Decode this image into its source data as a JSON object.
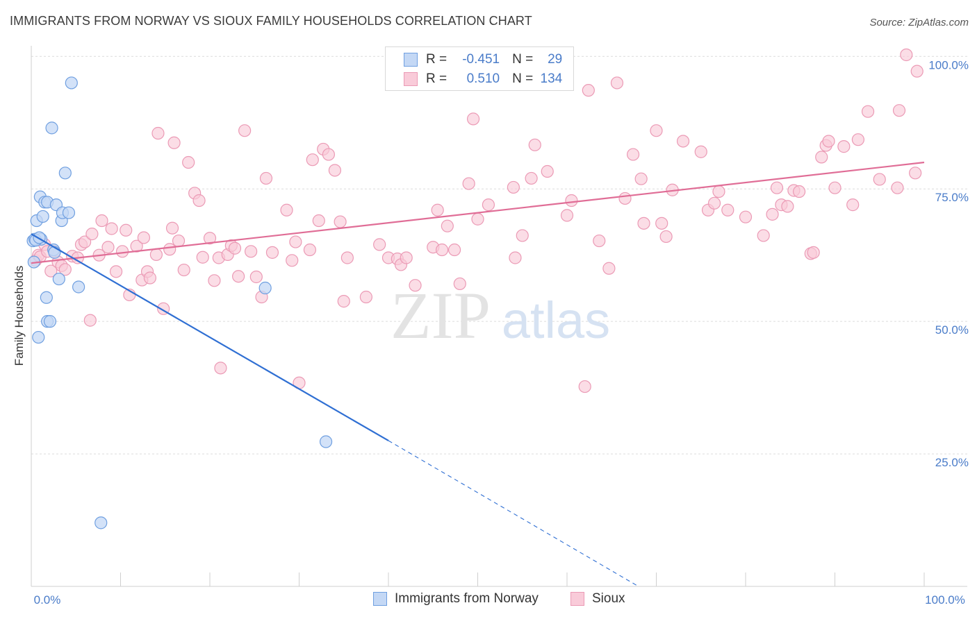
{
  "title": "IMMIGRANTS FROM NORWAY VS SIOUX FAMILY HOUSEHOLDS CORRELATION CHART",
  "source": "Source: ZipAtlas.com",
  "watermark": {
    "zip": "ZIP",
    "atlas": "atlas"
  },
  "legend": {
    "rows": [
      {
        "r_label": "R =",
        "r_value": "-0.451",
        "n_label": "N =",
        "n_value": "29"
      },
      {
        "r_label": "R =",
        "r_value": "0.510",
        "n_label": "N =",
        "n_value": "134"
      }
    ]
  },
  "colors": {
    "norway_fill": "#c4d8f5",
    "norway_stroke": "#6f9fe0",
    "norway_line": "#2f6fd3",
    "sioux_fill": "#f9cbd9",
    "sioux_stroke": "#eb9ab5",
    "sioux_line": "#e06d96",
    "tick_text": "#4a7cc9",
    "grid": "#dcdcdc"
  },
  "chart_data": {
    "type": "scatter",
    "title": "IMMIGRANTS FROM NORWAY VS SIOUX FAMILY HOUSEHOLDS CORRELATION CHART",
    "xlabel": "",
    "ylabel": "Family Households",
    "xlim": [
      0,
      100
    ],
    "ylim": [
      0,
      102
    ],
    "x_tick_labels": [
      "0.0%",
      "100.0%"
    ],
    "y_ticks": [
      25,
      50,
      75,
      100
    ],
    "y_tick_labels": [
      "25.0%",
      "50.0%",
      "75.0%",
      "100.0%"
    ],
    "grid": true,
    "series": [
      {
        "name": "Immigrants from Norway",
        "r": -0.451,
        "n": 29,
        "trend": {
          "x0": 0,
          "y0": 66.5,
          "x1": 40,
          "y1": 27.5,
          "dash_to_x": 68,
          "dash_to_y": 0
        },
        "points": [
          [
            0.2,
            65.2
          ],
          [
            0.3,
            61.2
          ],
          [
            0.4,
            65.5
          ],
          [
            0.6,
            69
          ],
          [
            0.8,
            47
          ],
          [
            1.0,
            73.5
          ],
          [
            1.1,
            65.5
          ],
          [
            1.3,
            69.8
          ],
          [
            1.5,
            72.5
          ],
          [
            1.7,
            54.5
          ],
          [
            1.8,
            72.5
          ],
          [
            1.8,
            50
          ],
          [
            2.1,
            50
          ],
          [
            2.3,
            86.5
          ],
          [
            2.5,
            63.5
          ],
          [
            2.6,
            63
          ],
          [
            2.8,
            72
          ],
          [
            3.1,
            58
          ],
          [
            3.4,
            69
          ],
          [
            3.5,
            70.5
          ],
          [
            3.8,
            78
          ],
          [
            4.2,
            70.5
          ],
          [
            4.5,
            95
          ],
          [
            5.3,
            56.5
          ],
          [
            7.8,
            12
          ],
          [
            26.2,
            56.3
          ],
          [
            33.0,
            27.3
          ],
          [
            0.5,
            65.3
          ],
          [
            0.9,
            65.8
          ]
        ]
      },
      {
        "name": "Sioux",
        "r": 0.51,
        "n": 134,
        "trend": {
          "x0": 0,
          "y0": 61,
          "x1": 100,
          "y1": 80
        },
        "points": [
          [
            0.5,
            61.5
          ],
          [
            0.8,
            62.5
          ],
          [
            1.0,
            62.2
          ],
          [
            1.5,
            64.5
          ],
          [
            1.8,
            63.2
          ],
          [
            2.2,
            59.5
          ],
          [
            2.6,
            63.2
          ],
          [
            3.0,
            61.2
          ],
          [
            3.4,
            60.5
          ],
          [
            3.8,
            59.8
          ],
          [
            4.6,
            62.3
          ],
          [
            5.2,
            62
          ],
          [
            5.6,
            64.5
          ],
          [
            6.0,
            65
          ],
          [
            6.6,
            50.2
          ],
          [
            6.8,
            66.5
          ],
          [
            7.6,
            62.5
          ],
          [
            7.9,
            69
          ],
          [
            8.6,
            64
          ],
          [
            9.0,
            67.5
          ],
          [
            9.5,
            59.4
          ],
          [
            10.2,
            63.2
          ],
          [
            10.6,
            67.2
          ],
          [
            11.0,
            55
          ],
          [
            11.8,
            64.2
          ],
          [
            12.4,
            57.8
          ],
          [
            12.6,
            65.8
          ],
          [
            13.0,
            59.4
          ],
          [
            13.3,
            58.2
          ],
          [
            14.0,
            62.6
          ],
          [
            14.2,
            85.5
          ],
          [
            14.8,
            52.4
          ],
          [
            15.5,
            63.6
          ],
          [
            15.8,
            67.6
          ],
          [
            16.0,
            83.7
          ],
          [
            16.5,
            65.2
          ],
          [
            17.1,
            59.7
          ],
          [
            17.6,
            80
          ],
          [
            18.3,
            74.2
          ],
          [
            18.8,
            72.8
          ],
          [
            19.2,
            62.1
          ],
          [
            20.0,
            65.7
          ],
          [
            20.5,
            57.7
          ],
          [
            21.0,
            62
          ],
          [
            21.2,
            41.2
          ],
          [
            22.0,
            62.6
          ],
          [
            22.4,
            64.3
          ],
          [
            22.8,
            63.8
          ],
          [
            23.2,
            58.5
          ],
          [
            23.9,
            86
          ],
          [
            24.6,
            63.2
          ],
          [
            25.2,
            58.4
          ],
          [
            25.8,
            54.6
          ],
          [
            26.3,
            77
          ],
          [
            27.0,
            63
          ],
          [
            28.6,
            71
          ],
          [
            29.2,
            61.5
          ],
          [
            29.6,
            65
          ],
          [
            30.0,
            38.4
          ],
          [
            31.2,
            63.5
          ],
          [
            31.5,
            80.5
          ],
          [
            32.2,
            69
          ],
          [
            32.7,
            82.5
          ],
          [
            33.3,
            81.5
          ],
          [
            34.0,
            78.5
          ],
          [
            34.6,
            68.8
          ],
          [
            35.0,
            53.8
          ],
          [
            35.4,
            62
          ],
          [
            37.5,
            54.6
          ],
          [
            39.0,
            64.5
          ],
          [
            40.0,
            62
          ],
          [
            41.0,
            61.8
          ],
          [
            41.4,
            60.7
          ],
          [
            42.0,
            62
          ],
          [
            43.0,
            56.8
          ],
          [
            45.0,
            64
          ],
          [
            45.5,
            71
          ],
          [
            46.0,
            63.5
          ],
          [
            46.6,
            68
          ],
          [
            47.4,
            63.5
          ],
          [
            48.0,
            57.1
          ],
          [
            49.0,
            76
          ],
          [
            49.5,
            88.2
          ],
          [
            50.0,
            69.3
          ],
          [
            51.2,
            72
          ],
          [
            54.0,
            75.3
          ],
          [
            54.2,
            62
          ],
          [
            55.0,
            66.2
          ],
          [
            56.0,
            77
          ],
          [
            56.4,
            83.3
          ],
          [
            57.8,
            78.3
          ],
          [
            60.0,
            70
          ],
          [
            60.5,
            72.8
          ],
          [
            62.0,
            37.7
          ],
          [
            62.4,
            93.6
          ],
          [
            63.6,
            65.2
          ],
          [
            64.7,
            60
          ],
          [
            65.6,
            95
          ],
          [
            66.5,
            73.2
          ],
          [
            67.4,
            81.5
          ],
          [
            68.3,
            76.9
          ],
          [
            68.6,
            68.5
          ],
          [
            70.0,
            86
          ],
          [
            70.6,
            68.5
          ],
          [
            71.1,
            66
          ],
          [
            71.8,
            74.8
          ],
          [
            73.0,
            84
          ],
          [
            75.0,
            82
          ],
          [
            75.8,
            71
          ],
          [
            76.5,
            72.3
          ],
          [
            77.0,
            74.5
          ],
          [
            78.0,
            71
          ],
          [
            80.0,
            69.7
          ],
          [
            82.0,
            66.2
          ],
          [
            83.0,
            70.2
          ],
          [
            83.5,
            75.2
          ],
          [
            84.0,
            72
          ],
          [
            84.7,
            71.7
          ],
          [
            85.4,
            74.7
          ],
          [
            86.0,
            74.5
          ],
          [
            87.3,
            62.8
          ],
          [
            87.6,
            63
          ],
          [
            88.5,
            81
          ],
          [
            89.0,
            83.2
          ],
          [
            89.3,
            84
          ],
          [
            90.0,
            75.2
          ],
          [
            91.0,
            83
          ],
          [
            92.0,
            72
          ],
          [
            92.6,
            84.3
          ],
          [
            93.7,
            89.6
          ],
          [
            95.0,
            76.8
          ],
          [
            97.0,
            75.2
          ],
          [
            97.2,
            89.8
          ],
          [
            98.0,
            100.3
          ],
          [
            99.0,
            78
          ],
          [
            99.2,
            97.2
          ]
        ]
      }
    ]
  },
  "bottom_legend": {
    "items": [
      {
        "label": "Immigrants from Norway"
      },
      {
        "label": "Sioux"
      }
    ]
  }
}
